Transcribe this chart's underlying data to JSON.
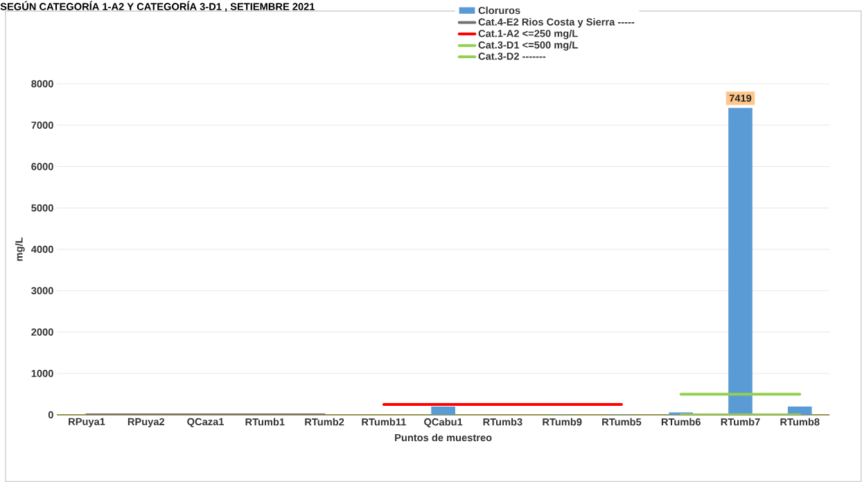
{
  "chart_data": {
    "type": "bar",
    "title": "SEGÚN CATEGORÍA 1-A2 Y CATEGORÍA 3-D1 , SETIEMBRE 2021",
    "xlabel": "Puntos de muestreo",
    "ylabel": "mg/L",
    "categories": [
      "RPuya1",
      "RPuya2",
      "QCaza1",
      "RTumb1",
      "RTumb2",
      "RTumb11",
      "QCabu1",
      "RTumb3",
      "RTumb9",
      "RTumb5",
      "RTumb6",
      "RTumb7",
      "RTumb8"
    ],
    "series": [
      {
        "name": "Cloruros",
        "color": "#5b9bd5",
        "values": [
          0,
          0,
          0,
          0,
          0,
          0,
          200,
          0,
          10,
          10,
          60,
          7419,
          200
        ],
        "value_labels": [
          null,
          null,
          null,
          null,
          null,
          null,
          null,
          null,
          null,
          null,
          null,
          "7419",
          null
        ]
      },
      {
        "name": "Cat.4-E2 Rios Costa y Sierra -----",
        "type": "line",
        "color": "#767171",
        "values": [
          0,
          0,
          0,
          0,
          0,
          null,
          null,
          null,
          null,
          null,
          null,
          null,
          null
        ]
      },
      {
        "name": "Cat.1-A2  <=250 mg/L",
        "type": "line",
        "color": "#ff0000",
        "values": [
          null,
          null,
          null,
          null,
          null,
          250,
          250,
          250,
          250,
          250,
          null,
          null,
          null
        ]
      },
      {
        "name": "Cat.3-D1 <=500 mg/L",
        "type": "line",
        "color": "#92d050",
        "values": [
          null,
          null,
          null,
          null,
          null,
          null,
          null,
          null,
          null,
          null,
          500,
          500,
          500
        ]
      },
      {
        "name": "Cat.3-D2  -------",
        "type": "line",
        "color": "#92d050",
        "values": [
          null,
          null,
          null,
          null,
          null,
          null,
          null,
          null,
          null,
          null,
          0,
          0,
          0
        ]
      }
    ],
    "ylim": [
      0,
      8000
    ],
    "yticks": [
      0,
      1000,
      2000,
      3000,
      4000,
      5000,
      6000,
      7000,
      8000
    ],
    "grid": "y",
    "legend": "top",
    "marker": "none",
    "line_style": "solid"
  }
}
